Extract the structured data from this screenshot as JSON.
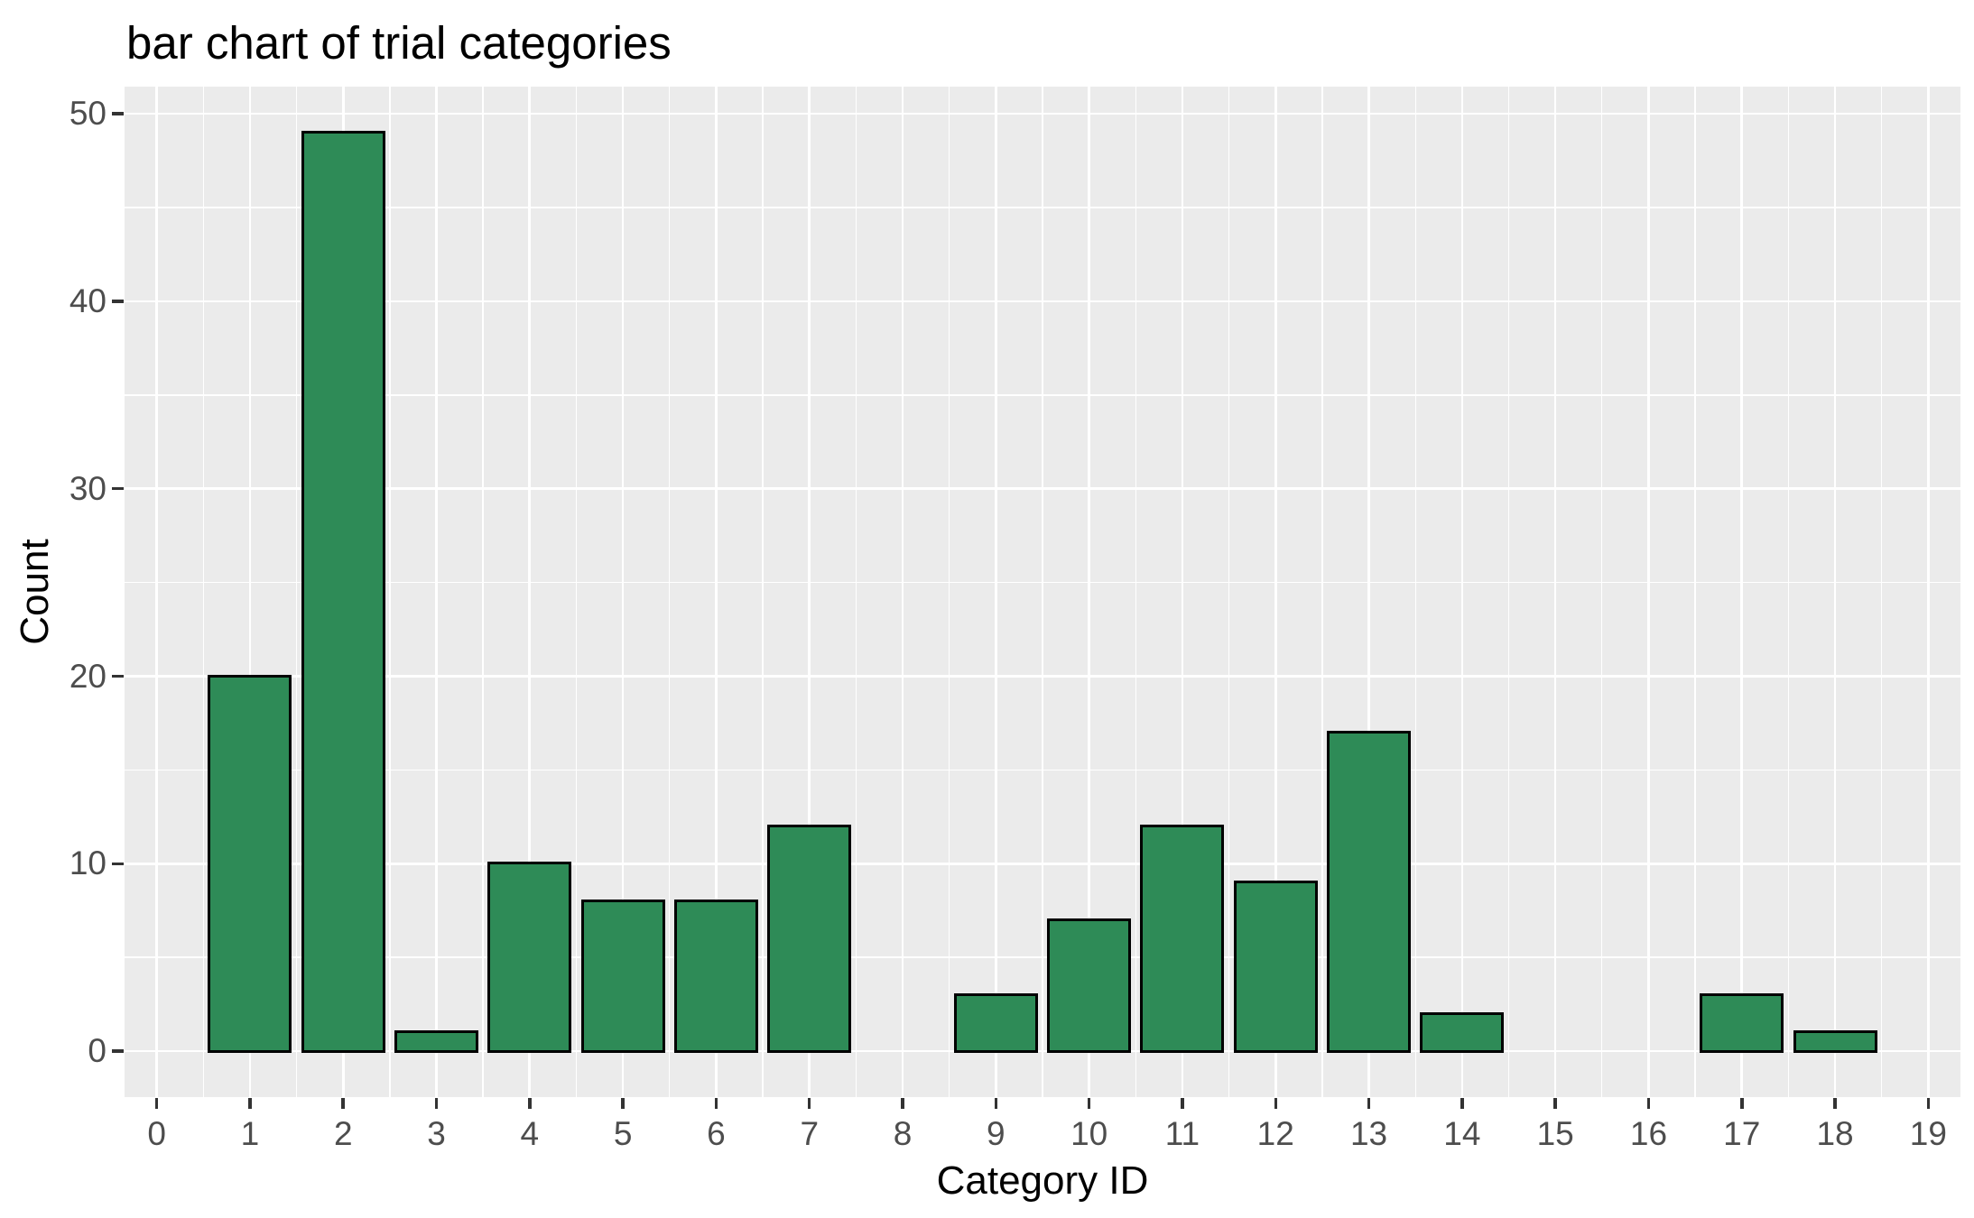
{
  "chart_data": {
    "type": "bar",
    "title": "bar chart of trial categories",
    "xlabel": "Category ID",
    "ylabel": "Count",
    "x": [
      0,
      1,
      2,
      3,
      4,
      5,
      6,
      7,
      8,
      9,
      10,
      11,
      12,
      13,
      14,
      15,
      16,
      17,
      18,
      19
    ],
    "values": [
      0,
      20,
      49,
      1,
      10,
      8,
      8,
      12,
      0,
      3,
      7,
      12,
      9,
      17,
      2,
      0,
      0,
      3,
      1,
      0
    ],
    "x_ticks": [
      0,
      1,
      2,
      3,
      4,
      5,
      6,
      7,
      8,
      9,
      10,
      11,
      12,
      13,
      14,
      15,
      16,
      17,
      18,
      19
    ],
    "y_ticks": [
      0,
      10,
      20,
      30,
      40,
      50
    ],
    "xlim": [
      -0.345,
      19.345
    ],
    "ylim": [
      -2.45,
      51.45
    ],
    "bar_width": 0.9,
    "grid": {
      "show": true,
      "minor_between_ticks": true
    },
    "legend_position": "none",
    "colors": {
      "bar_fill": "#2e8b57",
      "bar_border": "#000000",
      "panel_background": "#ebebeb",
      "gridline": "#ffffff",
      "tick_label": "#4d4d4d",
      "tick_mark": "#333333",
      "title_text": "#000000"
    }
  }
}
